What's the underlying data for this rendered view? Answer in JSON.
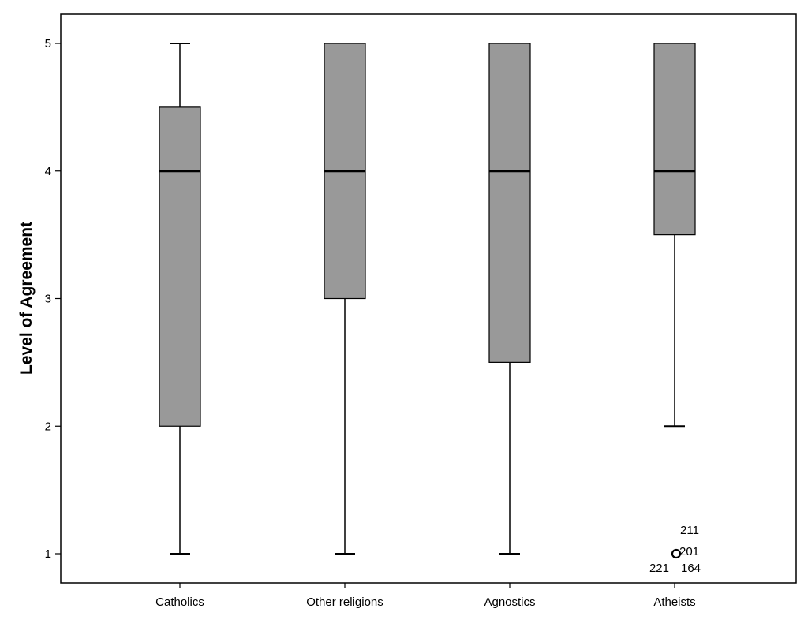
{
  "chart_data": {
    "type": "boxplot",
    "title": "",
    "xlabel": "",
    "ylabel": "Level of Agreement",
    "ylim": [
      0.8,
      5.2
    ],
    "yticks": [
      1,
      2,
      3,
      4,
      5
    ],
    "grid": false,
    "colors": {
      "box_fill": "#999999",
      "stroke": "#000000",
      "background": "#ffffff"
    },
    "categories": [
      "Catholics",
      "Other religions",
      "Agnostics",
      "Atheists"
    ],
    "boxes": [
      {
        "category": "Catholics",
        "min": 1,
        "q1": 2,
        "median": 4,
        "q3": 4.5,
        "max": 5
      },
      {
        "category": "Other religions",
        "min": 1,
        "q1": 3,
        "median": 4,
        "q3": 5,
        "max": 5
      },
      {
        "category": "Agnostics",
        "min": 1,
        "q1": 2.5,
        "median": 4,
        "q3": 5,
        "max": 5
      },
      {
        "category": "Atheists",
        "min": 2,
        "q1": 3.5,
        "median": 4,
        "q3": 5,
        "max": 5
      }
    ],
    "outliers": [
      {
        "category": "Atheists",
        "value": 1,
        "labels": [
          "211",
          "201",
          "221",
          "164"
        ]
      }
    ]
  }
}
